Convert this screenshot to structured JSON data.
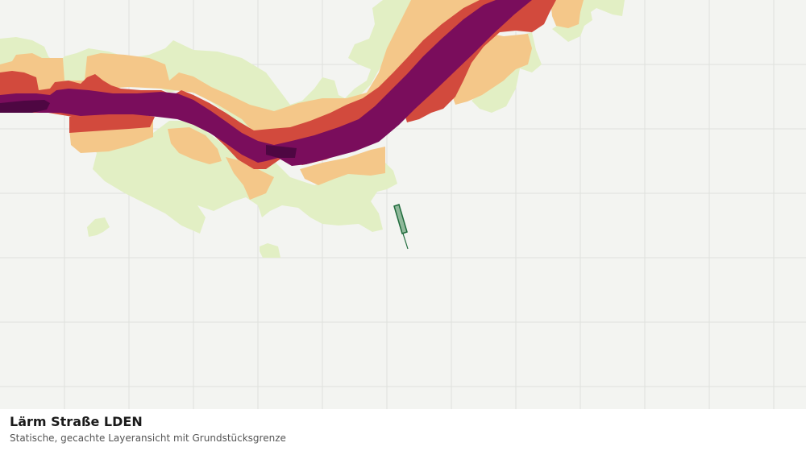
{
  "map": {
    "layer_title": "Lärm Straße LDEN",
    "layer_subtitle": "Statische, gecachte Layeransicht mit Grundstücksgrenze",
    "colors": {
      "background": "#f3f4f1",
      "grid": "#dfe1dd",
      "zone_low": "#e2efc4",
      "zone_mid": "#f4c789",
      "zone_high": "#d24a3d",
      "zone_very_high": "#7a0d5c",
      "zone_extreme": "#4e0742",
      "parcel_fill": "#8fb89a",
      "parcel_stroke": "#1f6b3c"
    }
  }
}
